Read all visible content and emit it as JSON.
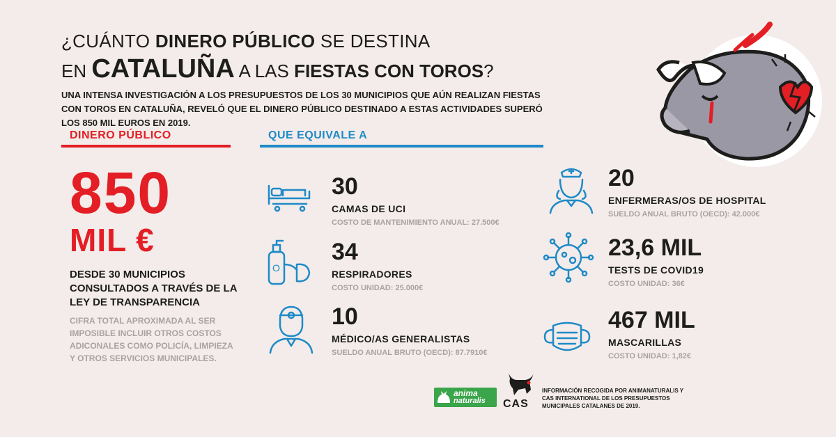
{
  "title": {
    "line1_pre": "¿CUÁNTO ",
    "line1_bold": "DINERO PÚBLICO",
    "line1_post": " SE DESTINA",
    "line2_pre": "EN ",
    "line2_bold": "CATALUÑA",
    "line2_mid": " A LAS ",
    "line2_bold2": "FIESTAS CON TOROS",
    "line2_post": "?"
  },
  "intro": "UNA INTENSA INVESTIGACIÓN A LOS PRESUPUESTOS DE LOS 30 MUNICIPIOS QUE AÚN REALIZAN FIESTAS CON TOROS EN CATALUÑA, REVELÓ QUE EL DINERO PÚBLICO DESTINADO A ESTAS ACTIVIDADES SUPERÓ LOS 850 MIL EUROS EN 2019.",
  "left": {
    "heading": "DINERO PÚBLICO",
    "amount": "850",
    "unit": "MIL €",
    "description": "DESDE 30 MUNICIPIOS CONSULTADOS A TRAVÉS DE LA LEY DE TRANSPARENCIA",
    "note": "CIFRA TOTAL APROXIMADA AL SER IMPOSIBLE INCLUIR OTROS COSTOS ADICONALES COMO POLICÍA, LIMPIEZA Y OTROS SERVICIOS MUNICIPALES."
  },
  "right_heading": "QUE EQUIVALE A",
  "stats": [
    {
      "icon": "hospital-bed-icon",
      "num": "30",
      "label": "CAMAS DE UCI",
      "cost": "COSTO DE MANTENIMIENTO ANUAL: 27.500€"
    },
    {
      "icon": "respirator-icon",
      "num": "34",
      "label": "RESPIRADORES",
      "cost": "COSTO UNIDAD: 25.000€"
    },
    {
      "icon": "doctor-icon",
      "num": "10",
      "label": "MÉDICO/AS GENERALISTAS",
      "cost": "SUELDO ANUAL BRUTO (OECD): 87.7910€"
    },
    {
      "icon": "nurse-icon",
      "num": "20",
      "label": "ENFERMERAS/OS DE HOSPITAL",
      "cost": "SUELDO ANUAL BRUTO (OECD): 42.000€"
    },
    {
      "icon": "virus-icon",
      "num": "23,6 MIL",
      "label": "TESTS DE COVID19",
      "cost": "COSTO UNIDAD: 36€"
    },
    {
      "icon": "face-mask-icon",
      "num": "467 MIL",
      "label": "MASCARILLAS",
      "cost": "COSTO UNIDAD: 1,82€"
    }
  ],
  "footer": {
    "anima_line1": "anima",
    "anima_line2": "naturalis",
    "cas": "CAS",
    "credit": "INFORMACIÓN RECOGIDA POR ANIMANATURALIS Y CAS INTERNATIONAL DE LOS PRESUPUESTOS MUNICIPALES CATALANES  DE 2019."
  },
  "colors": {
    "red": "#e31e24",
    "blue": "#1f8ac7",
    "grey": "#a8a3a1",
    "background": "#f3ecea",
    "bull": "#9b98a6"
  }
}
